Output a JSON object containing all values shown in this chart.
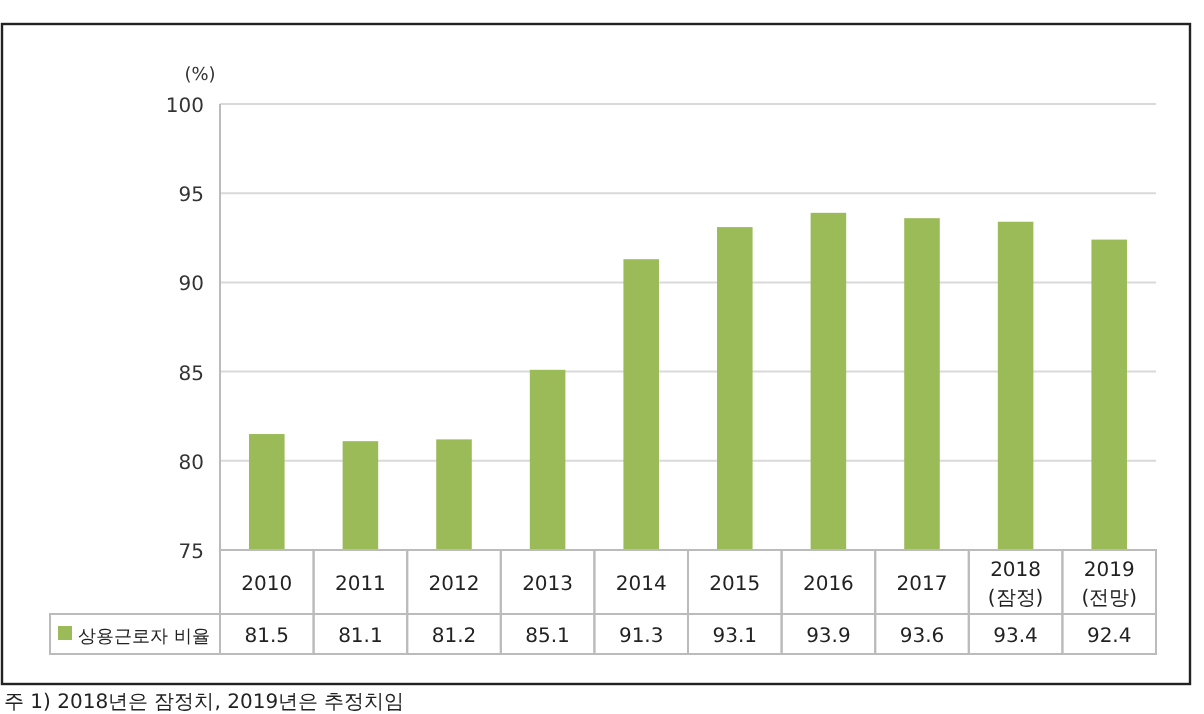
{
  "chart_data": {
    "type": "bar",
    "ylabel": "(%)",
    "categories": [
      "2010",
      "2011",
      "2012",
      "2013",
      "2014",
      "2015",
      "2016",
      "2017",
      "2018\n(잠정)",
      "2019\n(전망)"
    ],
    "series": [
      {
        "name": "상용근로자 비율",
        "color": "#9bbb59",
        "values": [
          81.5,
          81.1,
          81.2,
          85.1,
          91.3,
          93.1,
          93.9,
          93.6,
          93.4,
          92.4
        ]
      }
    ],
    "ylim": [
      75,
      100
    ],
    "yticks": [
      75,
      80,
      85,
      90,
      95,
      100
    ],
    "grid": "y",
    "data_labels": true,
    "legend": "bottom",
    "annotations": [
      "주 1) 2018년은 잠정치, 2019년은 추정치임"
    ]
  }
}
